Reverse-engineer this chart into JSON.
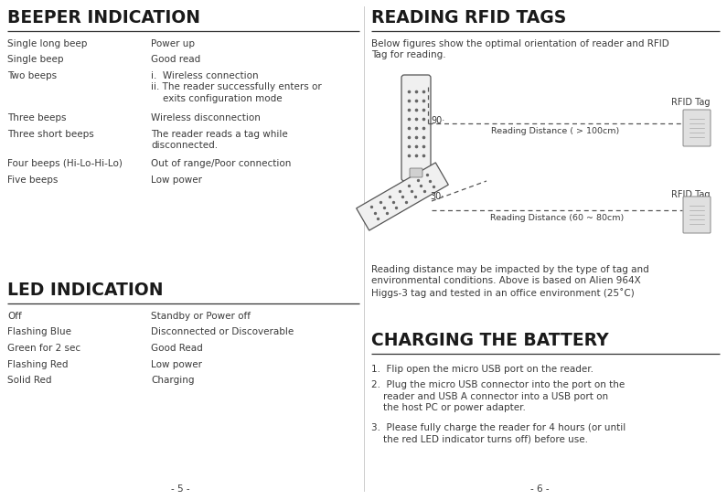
{
  "bg_color": "#ffffff",
  "divider_color": "#333333",
  "title_color": "#1a1a1a",
  "text_color": "#3a3a3a",
  "beeper_title": "BEEPER INDICATION",
  "beeper_rows": [
    [
      "Single long beep",
      "Power up"
    ],
    [
      "Single beep",
      "Good read"
    ],
    [
      "Two beeps",
      "i.  Wireless connection\nii. The reader successfully enters or\n    exits configuration mode"
    ],
    [
      "Three beeps",
      "Wireless disconnection"
    ],
    [
      "Three short beeps",
      "The reader reads a tag while\ndisconnected."
    ],
    [
      "Four beeps (Hi-Lo-Hi-Lo)",
      "Out of range/Poor connection"
    ],
    [
      "Five beeps",
      "Low power"
    ]
  ],
  "led_title": "LED INDICATION",
  "led_rows": [
    [
      "Off",
      "Standby or Power off"
    ],
    [
      "Flashing Blue",
      "Disconnected or Discoverable"
    ],
    [
      "Green for 2 sec",
      "Good Read"
    ],
    [
      "Flashing Red",
      "Low power"
    ],
    [
      "Solid Red",
      "Charging"
    ]
  ],
  "rfid_title": "READING RFID TAGS",
  "rfid_intro": "Below figures show the optimal orientation of reader and RFID\nTag for reading.",
  "rfid_distance_note": "Reading distance may be impacted by the type of tag and\nenvironmental conditions. Above is based on Alien 964X\nHiggs-3 tag and tested in an office environment (25˚C)",
  "rfid_tag_label": "RFID Tag",
  "rfid_dist1_label": "Reading Distance ( > 100cm)",
  "rfid_dist2_label": "Reading Distance (60 ~ 80cm)",
  "rfid_angle1": "90·",
  "rfid_angle2": "30·",
  "charging_title": "CHARGING THE BATTERY",
  "charging_steps": [
    "1.  Flip open the micro USB port on the reader.",
    "2.  Plug the micro USB connector into the port on the\n    reader and USB A connector into a USB port on\n    the host PC or power adapter.",
    "3.  Please fully charge the reader for 4 hours (or until\n    the red LED indicator turns off) before use."
  ],
  "page_left": "- 5 -",
  "page_right": "- 6 -"
}
